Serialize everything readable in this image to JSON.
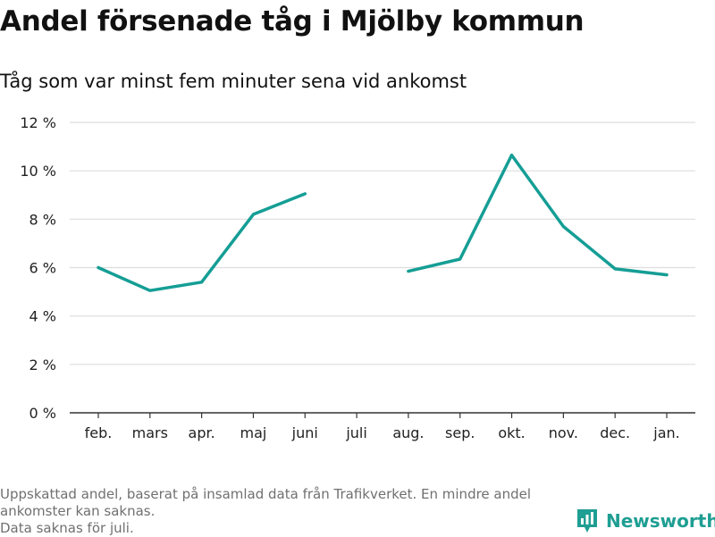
{
  "header": {
    "title": "Andel försenade tåg i Mjölby kommun",
    "subtitle": "Tåg som var minst fem minuter sena vid ankomst"
  },
  "chart_data": {
    "type": "line",
    "title": "",
    "xlabel": "",
    "ylabel": "",
    "categories": [
      "feb.",
      "mars",
      "apr.",
      "maj",
      "juni",
      "juli",
      "aug.",
      "sep.",
      "okt.",
      "nov.",
      "dec.",
      "jan."
    ],
    "series": [
      {
        "values": [
          6.0,
          5.05,
          5.4,
          8.2,
          9.05,
          null,
          5.85,
          6.35,
          10.65,
          7.7,
          5.95,
          5.7
        ],
        "color": "#159e95"
      }
    ],
    "ylim": [
      0,
      12
    ],
    "yticks": [
      0,
      2,
      4,
      6,
      8,
      10,
      12
    ],
    "ytick_suffix": " %",
    "grid": true,
    "legend": "none"
  },
  "footer": {
    "note_line1": "Uppskattad andel, baserat på insamlad data från Trafikverket. En mindre andel ankomster kan saknas.",
    "note_line2": "Data saknas för juli.",
    "brand": "Newsworthy",
    "brand_icon": "newsworthy-logo-icon",
    "brand_color": "#1f9e93"
  }
}
